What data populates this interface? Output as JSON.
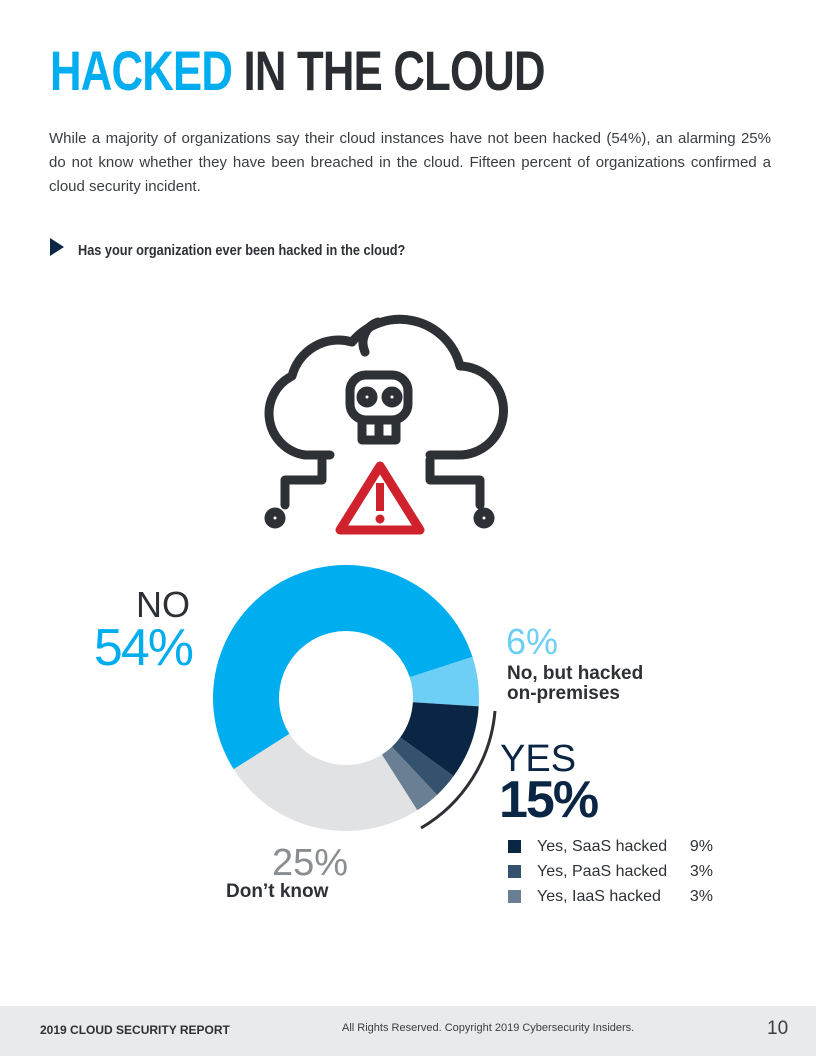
{
  "header": {
    "title_highlight": "HACKED",
    "title_rest": "IN THE CLOUD"
  },
  "intro": "While a majority of organizations say their cloud instances have not been hacked (54%), an alarming 25% do not know whether they have been breached in the cloud. Fifteen percent of organizations confirmed a cloud security incident.",
  "question": "Has your organization ever been hacked in the cloud?",
  "chart_data": {
    "type": "pie",
    "donut": true,
    "categories": [
      "NO",
      "No, but hacked on-premises",
      "Yes, SaaS hacked",
      "Yes, PaaS hacked",
      "Yes, IaaS hacked",
      "Don’t know"
    ],
    "values": [
      54,
      6,
      9,
      3,
      3,
      25
    ],
    "value_labels": [
      "54%",
      "6%",
      "9%",
      "3%",
      "3%",
      "25%"
    ],
    "colors": [
      "#00aeef",
      "#6dcff6",
      "#0b2545",
      "#34526e",
      "#6a7f94",
      "#e1e2e4"
    ],
    "group": {
      "name": "YES",
      "value": 15,
      "value_label": "15%"
    }
  },
  "footer": {
    "report": "2019 CLOUD SECURITY REPORT",
    "copyright": "All Rights Reserved. Copyright 2019 Cybersecurity Insiders.",
    "page": 10
  }
}
